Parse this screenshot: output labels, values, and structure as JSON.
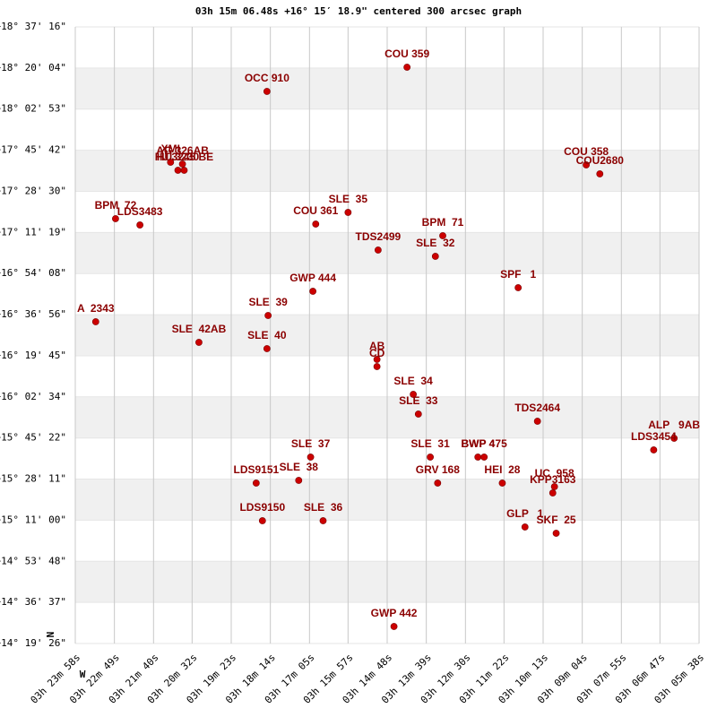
{
  "chart_data": {
    "type": "scatter",
    "title": "03h 15m 06.48s +16° 15′ 18.9\" centered 300 arcsec graph",
    "color": "#cc0000",
    "labels": [
      "COU 359",
      "OCC 910",
      "XMI",
      "HU 3230",
      "AG 326AB",
      "HJ 3245 BE",
      "COU 358",
      "COU2680",
      "BPM  72",
      "LDS3483",
      "SLE  35",
      "COU 361",
      "BPM  71",
      "TDS2499",
      "SLE  32",
      "SPF   1",
      "GWP 444",
      "A  2343",
      "SLE  39",
      "SLE  42AB",
      "SLE  40",
      "AB",
      "CD",
      "SLE  34",
      "SLE  33",
      "TDS2464",
      "ALP   9AB",
      "LDS3454",
      "SLE  37",
      "SLE  31",
      "BWP 4",
      "BWP 475",
      "LDS9151",
      "SLE  38",
      "GRV 168",
      "HEI  28",
      "UC  958",
      "KPP3163",
      "LDS9150",
      "SLE  36",
      "GLP   1",
      "SKF  25",
      "GWP 442"
    ],
    "x": [
      11653,
      11900,
      12070,
      12057,
      12049,
      12046,
      11337,
      11313,
      12167,
      12124,
      11757,
      11814,
      11590,
      11704,
      11603,
      11457,
      11819,
      12202,
      11898,
      12020,
      11900,
      11706,
      11706,
      11642,
      11633,
      11423,
      11182,
      11218,
      11823,
      11612,
      11528,
      11517,
      11919,
      11844,
      11599,
      11485,
      11393,
      11396,
      11908,
      11801,
      11445,
      11390,
      11676
    ],
    "values": [
      66024,
      65417,
      63640,
      63438,
      63595,
      63438,
      63573,
      63348,
      62224,
      62066,
      62381,
      62089,
      61797,
      61437,
      61280,
      60493,
      60403,
      59638,
      59796,
      59121,
      58964,
      58694,
      58514,
      57817,
      57322,
      57142,
      56715,
      56423,
      56243,
      56243,
      56243,
      56243,
      55591,
      55658,
      55591,
      55591,
      55501,
      55343,
      54646,
      54646,
      54489,
      54332,
      51993
    ],
    "xlim": [
      12238,
      11138
    ],
    "ylim": [
      51566,
      67036
    ],
    "xticks": [
      {
        "value": 12238,
        "label": "03h 23m 58s"
      },
      {
        "value": 12169,
        "label": "03h 22m 49s"
      },
      {
        "value": 12100,
        "label": "03h 21m 40s"
      },
      {
        "value": 12032,
        "label": "03h 20m 32s"
      },
      {
        "value": 11963,
        "label": "03h 19m 23s"
      },
      {
        "value": 11894,
        "label": "03h 18m 14s"
      },
      {
        "value": 11825,
        "label": "03h 17m 05s"
      },
      {
        "value": 11757,
        "label": "03h 15m 57s"
      },
      {
        "value": 11688,
        "label": "03h 14m 48s"
      },
      {
        "value": 11619,
        "label": "03h 13m 39s"
      },
      {
        "value": 11550,
        "label": "03h 12m 30s"
      },
      {
        "value": 11482,
        "label": "03h 11m 22s"
      },
      {
        "value": 11413,
        "label": "03h 10m 13s"
      },
      {
        "value": 11344,
        "label": "03h 09m 04s"
      },
      {
        "value": 11275,
        "label": "03h 07m 55s"
      },
      {
        "value": 11207,
        "label": "03h 06m 47s"
      },
      {
        "value": 11138,
        "label": "03h 05m 38s"
      }
    ],
    "yticks": [
      {
        "value": 67036,
        "label": "+18° 37' 16\""
      },
      {
        "value": 66004,
        "label": "+18° 20' 04\""
      },
      {
        "value": 64973,
        "label": "+18° 02' 53\""
      },
      {
        "value": 63942,
        "label": "+17° 45' 42\""
      },
      {
        "value": 62910,
        "label": "+17° 28' 30\""
      },
      {
        "value": 61879,
        "label": "+17° 11' 19\""
      },
      {
        "value": 60848,
        "label": "+16° 54' 08\""
      },
      {
        "value": 59816,
        "label": "+16° 36' 56\""
      },
      {
        "value": 58785,
        "label": "+16° 19' 45\""
      },
      {
        "value": 57754,
        "label": "+16° 02' 34\""
      },
      {
        "value": 56722,
        "label": "+15° 45' 22\""
      },
      {
        "value": 55691,
        "label": "+15° 28' 11\""
      },
      {
        "value": 54660,
        "label": "+15° 11' 00\""
      },
      {
        "value": 53628,
        "label": "+14° 53' 48\""
      },
      {
        "value": 52597,
        "label": "+14° 36' 37\""
      },
      {
        "value": 51566,
        "label": "+14° 19' 26\""
      }
    ],
    "compass": {
      "north": "N",
      "west": "W"
    }
  }
}
